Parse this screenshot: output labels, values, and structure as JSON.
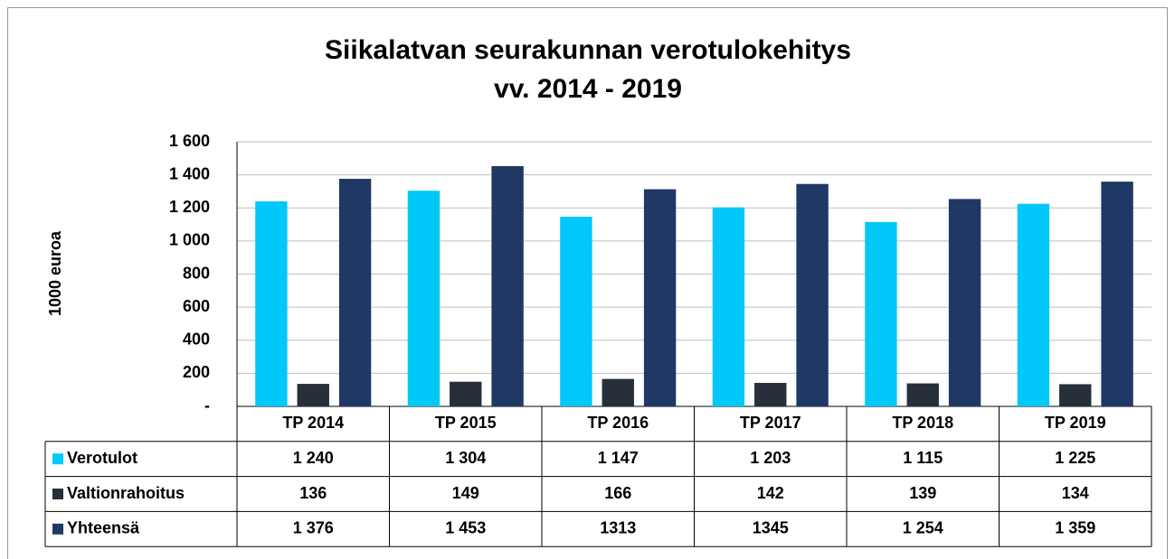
{
  "chart_data": {
    "type": "bar",
    "title": "Siikalatvan seurakunnan verotulokehitys",
    "subtitle": "vv. 2014 - 2019",
    "ylabel": "1000 euroa",
    "categories": [
      "TP 2014",
      "TP 2015",
      "TP 2016",
      "TP 2017",
      "TP 2018",
      "TP 2019"
    ],
    "series": [
      {
        "name": "Verotulot",
        "color": "#00c8f8",
        "values": [
          1240,
          1304,
          1147,
          1203,
          1115,
          1225
        ],
        "value_labels": [
          "1 240",
          "1 304",
          "1 147",
          "1 203",
          "1 115",
          "1 225"
        ]
      },
      {
        "name": "Valtionrahoitus",
        "color": "#262f3a",
        "values": [
          136,
          149,
          166,
          142,
          139,
          134
        ]
      },
      {
        "name": "Yhteensä",
        "color": "#1f3864",
        "values": [
          1376,
          1453,
          1313,
          1345,
          1254,
          1359
        ],
        "value_labels": [
          "1 376",
          "1 453",
          "1313",
          "1345",
          "1 254",
          "1 359"
        ]
      }
    ],
    "ylim": [
      0,
      1600
    ],
    "yticks": [
      {
        "value": 0,
        "label": "-"
      },
      200,
      400,
      600,
      800,
      {
        "value": 1000,
        "label": "1 000"
      },
      {
        "value": 1200,
        "label": "1 200"
      },
      {
        "value": 1400,
        "label": "1 400"
      },
      {
        "value": 1600,
        "label": "1 600"
      }
    ],
    "grid": true
  }
}
